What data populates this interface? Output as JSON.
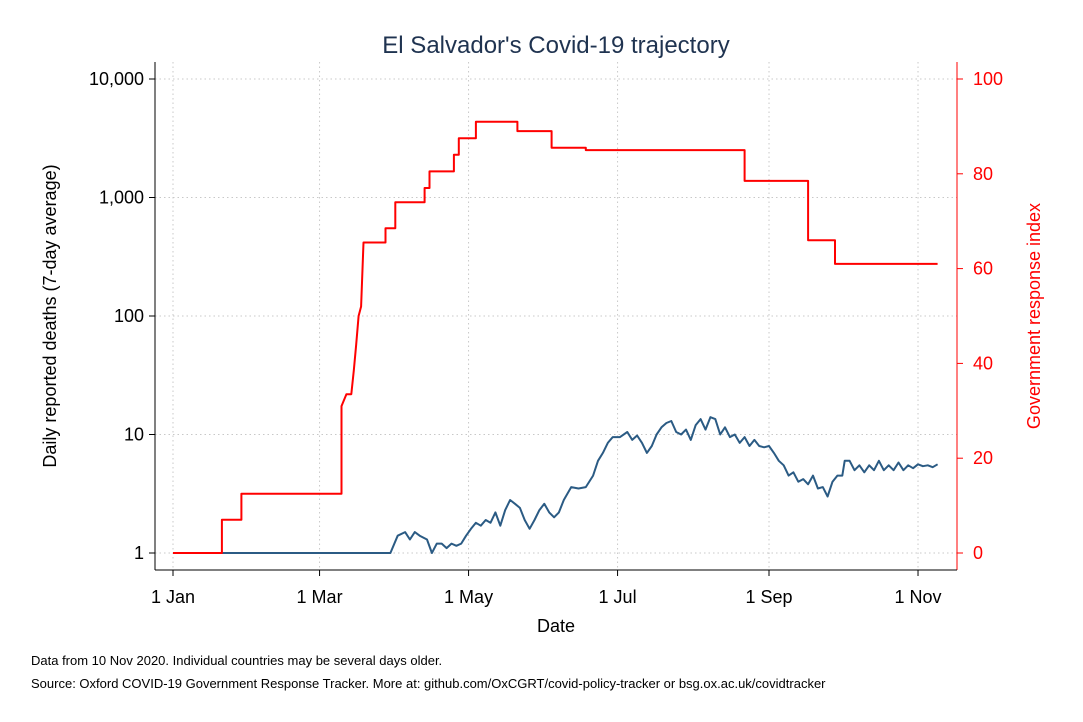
{
  "chart_data": {
    "type": "line",
    "title": "El Salvador's Covid-19 trajectory",
    "xlabel": "Date",
    "ylabel_left": "Daily reported deaths (7-day average)",
    "ylabel_right": "Government response index",
    "left_axis": {
      "scale": "log",
      "ylim": [
        1,
        10000
      ],
      "ticks": [
        1,
        10,
        100,
        1000,
        10000
      ],
      "tick_labels": [
        "1",
        "10",
        "100",
        "1,000",
        "10,000"
      ]
    },
    "right_axis": {
      "scale": "linear",
      "ylim": [
        0,
        100
      ],
      "ticks": [
        0,
        20,
        40,
        60,
        80,
        100
      ],
      "tick_labels": [
        "0",
        "20",
        "40",
        "60",
        "80",
        "100"
      ]
    },
    "x_axis": {
      "range": [
        "2020-01-01",
        "2020-11-10"
      ],
      "ticks": [
        "2020-01-01",
        "2020-03-01",
        "2020-05-01",
        "2020-07-01",
        "2020-09-01",
        "2020-11-01"
      ],
      "tick_labels": [
        "1 Jan",
        "1 Mar",
        "1 May",
        "1 Jul",
        "1 Sep",
        "1 Nov"
      ]
    },
    "grid": true,
    "colors": {
      "deaths": "#2b5b84",
      "response": "#ff0000",
      "grid": "#c8c8c8"
    },
    "series": [
      {
        "axis": "left",
        "points": [
          [
            "2020-01-01",
            1
          ],
          [
            "2020-03-30",
            1
          ],
          [
            "2020-04-02",
            1.4
          ],
          [
            "2020-04-05",
            1.5
          ],
          [
            "2020-04-07",
            1.3
          ],
          [
            "2020-04-09",
            1.5
          ],
          [
            "2020-04-11",
            1.4
          ],
          [
            "2020-04-14",
            1.3
          ],
          [
            "2020-04-16",
            1.0
          ],
          [
            "2020-04-18",
            1.2
          ],
          [
            "2020-04-20",
            1.2
          ],
          [
            "2020-04-22",
            1.1
          ],
          [
            "2020-04-24",
            1.2
          ],
          [
            "2020-04-26",
            1.15
          ],
          [
            "2020-04-28",
            1.2
          ],
          [
            "2020-04-30",
            1.4
          ],
          [
            "2020-05-02",
            1.6
          ],
          [
            "2020-05-04",
            1.8
          ],
          [
            "2020-05-06",
            1.7
          ],
          [
            "2020-05-08",
            1.9
          ],
          [
            "2020-05-10",
            1.8
          ],
          [
            "2020-05-12",
            2.2
          ],
          [
            "2020-05-14",
            1.7
          ],
          [
            "2020-05-16",
            2.3
          ],
          [
            "2020-05-18",
            2.8
          ],
          [
            "2020-05-20",
            2.6
          ],
          [
            "2020-05-22",
            2.4
          ],
          [
            "2020-05-24",
            1.9
          ],
          [
            "2020-05-26",
            1.6
          ],
          [
            "2020-05-28",
            1.9
          ],
          [
            "2020-05-30",
            2.3
          ],
          [
            "2020-06-01",
            2.6
          ],
          [
            "2020-06-03",
            2.2
          ],
          [
            "2020-06-05",
            2.0
          ],
          [
            "2020-06-07",
            2.2
          ],
          [
            "2020-06-09",
            2.8
          ],
          [
            "2020-06-12",
            3.6
          ],
          [
            "2020-06-15",
            3.5
          ],
          [
            "2020-06-18",
            3.6
          ],
          [
            "2020-06-21",
            4.5
          ],
          [
            "2020-06-23",
            6.0
          ],
          [
            "2020-06-25",
            7.0
          ],
          [
            "2020-06-27",
            8.5
          ],
          [
            "2020-06-29",
            9.5
          ],
          [
            "2020-07-02",
            9.5
          ],
          [
            "2020-07-05",
            10.5
          ],
          [
            "2020-07-07",
            9.0
          ],
          [
            "2020-07-09",
            9.8
          ],
          [
            "2020-07-11",
            8.5
          ],
          [
            "2020-07-13",
            7.0
          ],
          [
            "2020-07-15",
            8.0
          ],
          [
            "2020-07-17",
            10.0
          ],
          [
            "2020-07-19",
            11.5
          ],
          [
            "2020-07-21",
            12.5
          ],
          [
            "2020-07-23",
            13.0
          ],
          [
            "2020-07-25",
            10.5
          ],
          [
            "2020-07-27",
            10.0
          ],
          [
            "2020-07-29",
            11.0
          ],
          [
            "2020-07-31",
            9.0
          ],
          [
            "2020-08-02",
            12.0
          ],
          [
            "2020-08-04",
            13.5
          ],
          [
            "2020-08-06",
            11.0
          ],
          [
            "2020-08-08",
            14.0
          ],
          [
            "2020-08-10",
            13.5
          ],
          [
            "2020-08-12",
            10.0
          ],
          [
            "2020-08-14",
            11.5
          ],
          [
            "2020-08-16",
            9.5
          ],
          [
            "2020-08-18",
            10.0
          ],
          [
            "2020-08-20",
            8.5
          ],
          [
            "2020-08-22",
            9.5
          ],
          [
            "2020-08-24",
            8.0
          ],
          [
            "2020-08-26",
            9.0
          ],
          [
            "2020-08-28",
            8.0
          ],
          [
            "2020-08-30",
            7.8
          ],
          [
            "2020-09-01",
            8.0
          ],
          [
            "2020-09-03",
            7.0
          ],
          [
            "2020-09-05",
            6.0
          ],
          [
            "2020-09-07",
            5.5
          ],
          [
            "2020-09-09",
            4.5
          ],
          [
            "2020-09-11",
            4.8
          ],
          [
            "2020-09-13",
            4.0
          ],
          [
            "2020-09-15",
            4.2
          ],
          [
            "2020-09-17",
            3.8
          ],
          [
            "2020-09-19",
            4.5
          ],
          [
            "2020-09-21",
            3.5
          ],
          [
            "2020-09-23",
            3.6
          ],
          [
            "2020-09-25",
            3.0
          ],
          [
            "2020-09-27",
            4.0
          ],
          [
            "2020-09-29",
            4.5
          ],
          [
            "2020-10-01",
            4.5
          ],
          [
            "2020-10-02",
            6.0
          ],
          [
            "2020-10-04",
            6.0
          ],
          [
            "2020-10-06",
            5.0
          ],
          [
            "2020-10-08",
            5.5
          ],
          [
            "2020-10-10",
            4.8
          ],
          [
            "2020-10-12",
            5.5
          ],
          [
            "2020-10-14",
            5.0
          ],
          [
            "2020-10-16",
            6.0
          ],
          [
            "2020-10-18",
            5.0
          ],
          [
            "2020-10-20",
            5.5
          ],
          [
            "2020-10-22",
            5.0
          ],
          [
            "2020-10-24",
            5.8
          ],
          [
            "2020-10-26",
            5.0
          ],
          [
            "2020-10-28",
            5.5
          ],
          [
            "2020-10-30",
            5.2
          ],
          [
            "2020-11-01",
            5.6
          ],
          [
            "2020-11-03",
            5.4
          ],
          [
            "2020-11-05",
            5.5
          ],
          [
            "2020-11-07",
            5.3
          ],
          [
            "2020-11-09",
            5.6
          ]
        ]
      },
      {
        "axis": "right",
        "points": [
          [
            "2020-01-01",
            0
          ],
          [
            "2020-01-21",
            0
          ],
          [
            "2020-01-21",
            7
          ],
          [
            "2020-01-29",
            7
          ],
          [
            "2020-01-29",
            12.5
          ],
          [
            "2020-03-10",
            12.5
          ],
          [
            "2020-03-10",
            31
          ],
          [
            "2020-03-12",
            33.5
          ],
          [
            "2020-03-14",
            33.5
          ],
          [
            "2020-03-15",
            38.5
          ],
          [
            "2020-03-16",
            44
          ],
          [
            "2020-03-17",
            50
          ],
          [
            "2020-03-18",
            52
          ],
          [
            "2020-03-19",
            65.5
          ],
          [
            "2020-03-28",
            65.5
          ],
          [
            "2020-03-28",
            68.5
          ],
          [
            "2020-04-01",
            68.5
          ],
          [
            "2020-04-01",
            74
          ],
          [
            "2020-04-13",
            74
          ],
          [
            "2020-04-13",
            77
          ],
          [
            "2020-04-15",
            77
          ],
          [
            "2020-04-15",
            80.5
          ],
          [
            "2020-04-25",
            80.5
          ],
          [
            "2020-04-25",
            84
          ],
          [
            "2020-04-27",
            84
          ],
          [
            "2020-04-27",
            87.5
          ],
          [
            "2020-05-04",
            87.5
          ],
          [
            "2020-05-04",
            91
          ],
          [
            "2020-05-21",
            91
          ],
          [
            "2020-05-21",
            89
          ],
          [
            "2020-06-04",
            89
          ],
          [
            "2020-06-04",
            85.5
          ],
          [
            "2020-06-18",
            85.5
          ],
          [
            "2020-06-18",
            85
          ],
          [
            "2020-08-22",
            85
          ],
          [
            "2020-08-22",
            78.5
          ],
          [
            "2020-09-17",
            78.5
          ],
          [
            "2020-09-17",
            66
          ],
          [
            "2020-09-28",
            66
          ],
          [
            "2020-09-28",
            61
          ],
          [
            "2020-11-09",
            61
          ]
        ]
      }
    ]
  },
  "footer": {
    "note1": "Data from 10 Nov 2020. Individual countries may be several days older.",
    "note2": "Source: Oxford COVID-19 Government Response Tracker. More at: github.com/OxCGRT/covid-policy-tracker or bsg.ox.ac.uk/covidtracker"
  }
}
